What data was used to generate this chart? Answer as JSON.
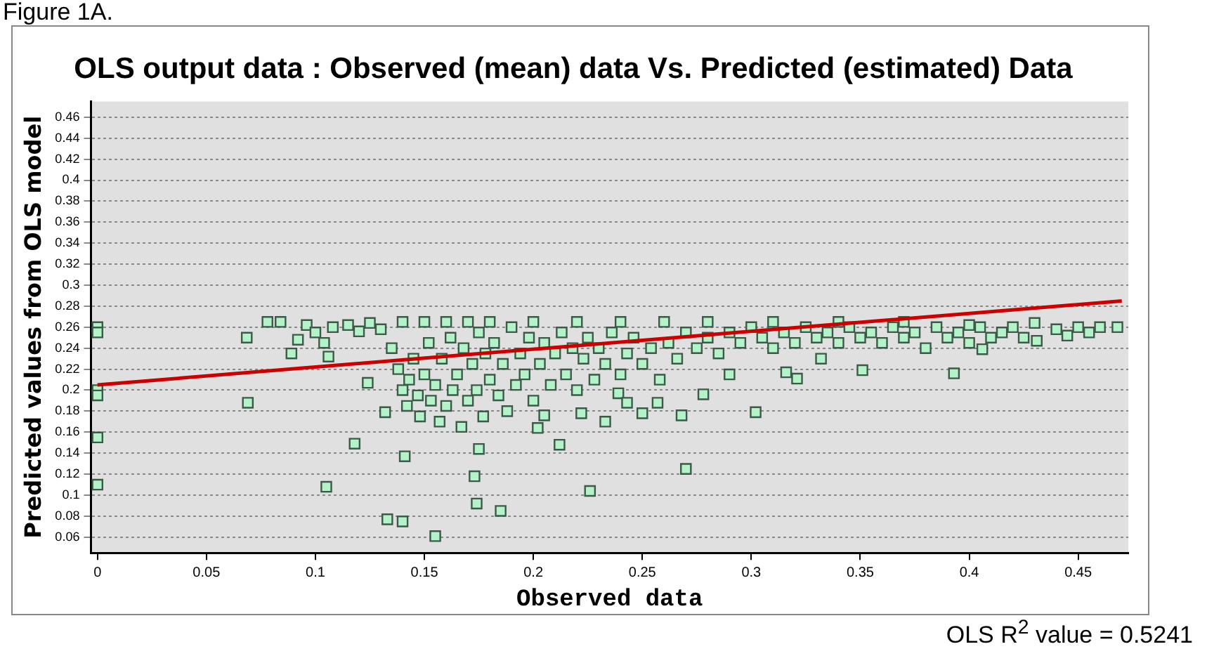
{
  "chart_data": {
    "type": "scatter",
    "title": "OLS output data : Observed (mean) data Vs. Predicted (estimated) Data",
    "xlabel": "Observed data",
    "ylabel": "Predicted values from OLS model",
    "annotations": [
      "Figure 1A.",
      "OLS  R$^{2}$ value = 0.5241"
    ],
    "xlim": [
      -0.003,
      0.473
    ],
    "xticks": [
      0,
      0.05,
      0.1,
      0.15,
      0.2,
      0.25,
      0.3,
      0.35,
      0.4,
      0.45
    ],
    "ylim": [
      0.045,
      0.475
    ],
    "yticks": [
      0.06,
      0.08,
      0.1,
      0.12,
      0.14,
      0.16,
      0.18,
      0.2,
      0.22,
      0.24,
      0.26,
      0.28,
      0.3,
      0.32,
      0.34,
      0.36,
      0.38,
      0.4,
      0.42,
      0.44,
      0.46
    ],
    "grid": "y",
    "legend": false,
    "series": [
      {
        "color": "#b4f2c8",
        "marker": "square",
        "x": [
          0,
          0,
          0,
          0,
          0,
          0,
          0.0685,
          0.069,
          0.089,
          0.092,
          0.105,
          0.106,
          0.104,
          0.118,
          0.124,
          0.133,
          0.14,
          0.155,
          0.141,
          0.132,
          0.173,
          0.174,
          0.185,
          0.175,
          0.202,
          0.205,
          0.212,
          0.222,
          0.226,
          0.27,
          0.268,
          0.25,
          0.257,
          0.239,
          0.243,
          0.233,
          0.278,
          0.302,
          0.29,
          0.321,
          0.316,
          0.332,
          0.351,
          0.393,
          0.431,
          0.406,
          0.468,
          0.135,
          0.138,
          0.14,
          0.142,
          0.143,
          0.145,
          0.147,
          0.148,
          0.15,
          0.152,
          0.153,
          0.155,
          0.157,
          0.158,
          0.16,
          0.162,
          0.163,
          0.165,
          0.167,
          0.168,
          0.17,
          0.172,
          0.174,
          0.175,
          0.177,
          0.178,
          0.18,
          0.182,
          0.184,
          0.186,
          0.188,
          0.19,
          0.192,
          0.194,
          0.196,
          0.198,
          0.2,
          0.203,
          0.205,
          0.208,
          0.21,
          0.213,
          0.215,
          0.218,
          0.22,
          0.223,
          0.225,
          0.228,
          0.23,
          0.233,
          0.236,
          0.24,
          0.243,
          0.246,
          0.25,
          0.254,
          0.258,
          0.262,
          0.266,
          0.27,
          0.275,
          0.28,
          0.285,
          0.29,
          0.295,
          0.3,
          0.305,
          0.31,
          0.315,
          0.32,
          0.325,
          0.33,
          0.335,
          0.34,
          0.345,
          0.35,
          0.355,
          0.36,
          0.365,
          0.37,
          0.375,
          0.38,
          0.385,
          0.39,
          0.395,
          0.4,
          0.405,
          0.41,
          0.415,
          0.42,
          0.425,
          0.44,
          0.445,
          0.45,
          0.455,
          0.46,
          0.078,
          0.084,
          0.096,
          0.1,
          0.108,
          0.115,
          0.12,
          0.125,
          0.13,
          0.14,
          0.15,
          0.16,
          0.17,
          0.18,
          0.2,
          0.22,
          0.24,
          0.26,
          0.28,
          0.31,
          0.34,
          0.37,
          0.4,
          0.43
        ],
        "values": [
          0.26,
          0.255,
          0.2,
          0.195,
          0.155,
          0.11,
          0.25,
          0.188,
          0.235,
          0.248,
          0.108,
          0.232,
          0.245,
          0.149,
          0.207,
          0.077,
          0.075,
          0.061,
          0.137,
          0.179,
          0.118,
          0.092,
          0.085,
          0.144,
          0.164,
          0.176,
          0.148,
          0.178,
          0.104,
          0.125,
          0.176,
          0.178,
          0.188,
          0.197,
          0.188,
          0.17,
          0.196,
          0.179,
          0.215,
          0.211,
          0.217,
          0.23,
          0.219,
          0.216,
          0.247,
          0.239,
          0.26,
          0.24,
          0.22,
          0.2,
          0.185,
          0.21,
          0.23,
          0.195,
          0.175,
          0.215,
          0.245,
          0.19,
          0.205,
          0.17,
          0.23,
          0.185,
          0.25,
          0.2,
          0.215,
          0.165,
          0.24,
          0.19,
          0.225,
          0.2,
          0.255,
          0.175,
          0.235,
          0.21,
          0.245,
          0.195,
          0.225,
          0.18,
          0.26,
          0.205,
          0.235,
          0.215,
          0.25,
          0.19,
          0.225,
          0.245,
          0.205,
          0.235,
          0.255,
          0.215,
          0.24,
          0.2,
          0.23,
          0.25,
          0.21,
          0.24,
          0.225,
          0.255,
          0.215,
          0.235,
          0.25,
          0.225,
          0.24,
          0.21,
          0.245,
          0.23,
          0.255,
          0.24,
          0.25,
          0.235,
          0.255,
          0.245,
          0.26,
          0.25,
          0.24,
          0.255,
          0.245,
          0.26,
          0.25,
          0.255,
          0.245,
          0.26,
          0.25,
          0.255,
          0.245,
          0.26,
          0.25,
          0.255,
          0.24,
          0.26,
          0.25,
          0.255,
          0.245,
          0.26,
          0.25,
          0.255,
          0.26,
          0.25,
          0.258,
          0.252,
          0.26,
          0.255,
          0.26,
          0.265,
          0.265,
          0.262,
          0.255,
          0.26,
          0.262,
          0.256,
          0.264,
          0.258,
          0.265,
          0.265,
          0.265,
          0.265,
          0.265,
          0.265,
          0.265,
          0.265,
          0.265,
          0.265,
          0.265,
          0.265,
          0.265,
          0.262,
          0.264
        ]
      },
      {
        "type": "line",
        "color": "#cc0000",
        "x": [
          0,
          0.47
        ],
        "values": [
          0.205,
          0.285
        ]
      }
    ]
  }
}
